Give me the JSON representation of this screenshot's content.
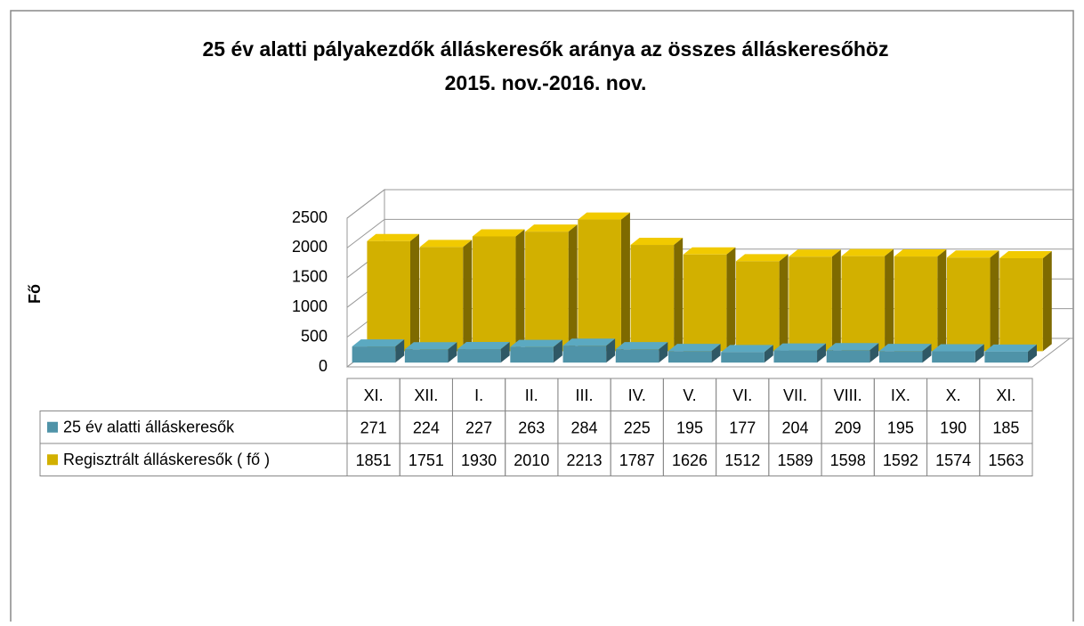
{
  "chart_data": {
    "type": "bar3d",
    "title": "25 év alatti pályakezdők álláskeresők aránya az összes álláskeresőhöz",
    "subtitle": "2015. nov.-2016. nov.",
    "y_label": "Fő",
    "categories": [
      "XI.",
      "XII.",
      "I.",
      "II.",
      "III.",
      "IV.",
      "V.",
      "VI.",
      "VII.",
      "VIII.",
      "IX.",
      "X.",
      "XI."
    ],
    "series": [
      {
        "name": "25 év alatti álláskeresők",
        "color": "#4f93a8",
        "values": [
          271,
          224,
          227,
          263,
          284,
          225,
          195,
          177,
          204,
          209,
          195,
          190,
          185
        ]
      },
      {
        "name": "Regisztrált álláskeresők ( fő )",
        "color": "#d2b000",
        "values": [
          1851,
          1751,
          1930,
          2010,
          2213,
          1787,
          1626,
          1512,
          1589,
          1598,
          1592,
          1574,
          1563
        ]
      }
    ],
    "ylim": [
      0,
      2500
    ],
    "yticks": [
      0,
      500,
      1000,
      1500,
      2000,
      2500
    ],
    "grid": true,
    "data_table": true
  }
}
